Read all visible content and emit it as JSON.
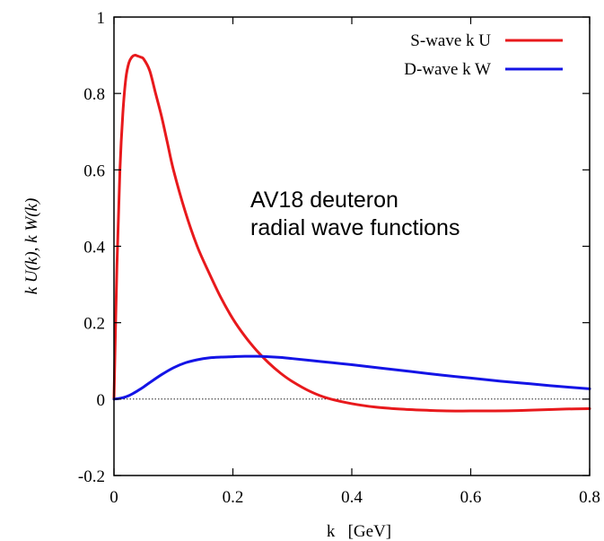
{
  "chart_data": {
    "type": "line",
    "title": "",
    "xlabel": "k   [GeV]",
    "ylabel": "k U(k),  k W(k)",
    "xlim": [
      0,
      0.8
    ],
    "ylim": [
      -0.2,
      1.0
    ],
    "x_ticks": [
      0,
      0.2,
      0.4,
      0.6,
      0.8
    ],
    "x_tick_labels": [
      "0",
      "0.2",
      "0.4",
      "0.6",
      "0.8"
    ],
    "y_ticks": [
      -0.2,
      0,
      0.2,
      0.4,
      0.6,
      0.8,
      1.0
    ],
    "y_tick_labels": [
      "-0.2",
      "0",
      "0.2",
      "0.4",
      "0.6",
      "0.8",
      "1"
    ],
    "grid": false,
    "zero_line": true,
    "legend_position": "top-right",
    "annotation": [
      "AV18 deuteron",
      "radial wave functions"
    ],
    "series": [
      {
        "name": "S-wave k U",
        "color": "#e8191c",
        "x": [
          0,
          0.005,
          0.01,
          0.015,
          0.02,
          0.025,
          0.03,
          0.035,
          0.04,
          0.045,
          0.05,
          0.06,
          0.07,
          0.08,
          0.09,
          0.1,
          0.12,
          0.14,
          0.16,
          0.18,
          0.2,
          0.22,
          0.24,
          0.26,
          0.28,
          0.3,
          0.33,
          0.36,
          0.4,
          0.44,
          0.48,
          0.52,
          0.56,
          0.6,
          0.64,
          0.68,
          0.72,
          0.76,
          0.8
        ],
        "y": [
          0,
          0.35,
          0.6,
          0.75,
          0.84,
          0.88,
          0.895,
          0.9,
          0.898,
          0.895,
          0.89,
          0.86,
          0.8,
          0.74,
          0.67,
          0.6,
          0.49,
          0.4,
          0.33,
          0.265,
          0.21,
          0.165,
          0.127,
          0.095,
          0.068,
          0.046,
          0.02,
          0.002,
          -0.012,
          -0.021,
          -0.026,
          -0.029,
          -0.031,
          -0.031,
          -0.031,
          -0.03,
          -0.028,
          -0.026,
          -0.025
        ]
      },
      {
        "name": "D-wave k W",
        "color": "#1414e6",
        "x": [
          0,
          0.01,
          0.02,
          0.03,
          0.04,
          0.05,
          0.06,
          0.08,
          0.1,
          0.12,
          0.14,
          0.16,
          0.18,
          0.2,
          0.22,
          0.24,
          0.26,
          0.28,
          0.3,
          0.35,
          0.4,
          0.45,
          0.5,
          0.55,
          0.6,
          0.65,
          0.7,
          0.75,
          0.8
        ],
        "y": [
          0,
          0.002,
          0.006,
          0.013,
          0.022,
          0.032,
          0.043,
          0.064,
          0.082,
          0.095,
          0.103,
          0.108,
          0.11,
          0.111,
          0.112,
          0.112,
          0.111,
          0.109,
          0.106,
          0.098,
          0.09,
          0.081,
          0.072,
          0.063,
          0.055,
          0.047,
          0.04,
          0.033,
          0.027
        ]
      }
    ]
  }
}
